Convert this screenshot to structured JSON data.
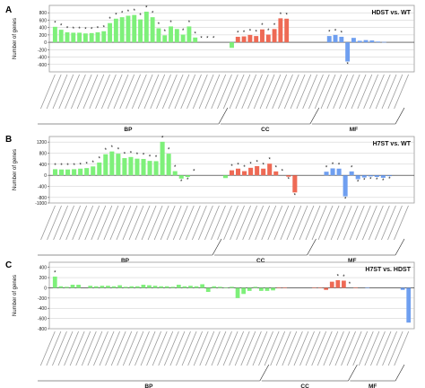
{
  "figure": {
    "bracket_labels": {
      "bp": "BP",
      "cc": "CC",
      "mf": "MF"
    },
    "y_axis_label": "Number of genes",
    "colors": {
      "bp": "#7ef07a",
      "cc": "#ee6a55",
      "mf": "#6f9ff0",
      "axis": "#222222",
      "grid": "#bdbdbd",
      "star": "#000000"
    }
  },
  "chart_data": [
    {
      "type": "bar",
      "panel": "A",
      "title": "HDST vs. WT",
      "ylabel": "Number of genes",
      "ylim": [
        -800,
        1000
      ],
      "yticks": [
        800,
        600,
        400,
        200,
        0,
        -200,
        -400,
        -600
      ],
      "grid": true,
      "bar_direction": "up_and_down",
      "groups": [
        {
          "name": "BP",
          "count": 30
        },
        {
          "name": "CC",
          "count": 15
        },
        {
          "name": "MF",
          "count": 14
        }
      ],
      "values": [
        420,
        340,
        270,
        260,
        260,
        240,
        250,
        270,
        300,
        520,
        640,
        680,
        720,
        740,
        620,
        830,
        680,
        380,
        190,
        430,
        360,
        210,
        430,
        130,
        0,
        0,
        0,
        0,
        0,
        -150,
        150,
        160,
        200,
        170,
        350,
        210,
        360,
        650,
        640,
        0,
        0,
        0,
        0,
        0,
        0,
        170,
        200,
        150,
        -520,
        120,
        40,
        60,
        50,
        20,
        10,
        0,
        0,
        0,
        0
      ],
      "significant": [
        0,
        1,
        2,
        3,
        4,
        5,
        6,
        7,
        8,
        9,
        10,
        11,
        12,
        13,
        14,
        15,
        16,
        17,
        18,
        19,
        21,
        22,
        23,
        24,
        25,
        26,
        30,
        31,
        32,
        33,
        34,
        35,
        36,
        37,
        38,
        45,
        46,
        47,
        48
      ]
    },
    {
      "type": "bar",
      "panel": "B",
      "title": "H7ST vs. WT",
      "ylabel": "Number of genes",
      "ylim": [
        -1000,
        1400
      ],
      "yticks": [
        1200,
        800,
        400,
        0,
        -400,
        -800,
        -1000
      ],
      "grid": true,
      "bar_direction": "up_and_down",
      "groups": [
        {
          "name": "BP",
          "count": 28
        },
        {
          "name": "CC",
          "count": 15
        },
        {
          "name": "MF",
          "count": 14
        }
      ],
      "values": [
        220,
        210,
        210,
        220,
        240,
        260,
        320,
        460,
        760,
        860,
        780,
        620,
        660,
        600,
        590,
        520,
        510,
        1210,
        780,
        150,
        -120,
        -60,
        0,
        0,
        0,
        0,
        0,
        -100,
        180,
        240,
        150,
        270,
        330,
        240,
        420,
        140,
        0,
        -50,
        -620,
        0,
        0,
        0,
        0,
        130,
        250,
        240,
        -760,
        140,
        -140,
        -80,
        -40,
        -60,
        -90,
        -30,
        0,
        0,
        0
      ],
      "significant": [
        0,
        1,
        2,
        3,
        4,
        5,
        6,
        7,
        8,
        9,
        10,
        11,
        12,
        13,
        14,
        15,
        16,
        17,
        18,
        19,
        20,
        21,
        22,
        28,
        29,
        30,
        31,
        32,
        33,
        34,
        35,
        36,
        37,
        38,
        43,
        44,
        45,
        46,
        47,
        48,
        49,
        50,
        51,
        52,
        53
      ]
    },
    {
      "type": "bar",
      "panel": "C",
      "title": "H7ST vs. HDST",
      "ylabel": "Number of genes",
      "ylim": [
        -800,
        500
      ],
      "yticks": [
        400,
        200,
        0,
        -200,
        -400,
        -600,
        -800
      ],
      "grid": true,
      "bar_direction": "up_and_down",
      "groups": [
        {
          "name": "BP",
          "count": 38
        },
        {
          "name": "CC",
          "count": 15
        },
        {
          "name": "MF",
          "count": 8
        }
      ],
      "values": [
        220,
        30,
        20,
        60,
        60,
        0,
        40,
        30,
        40,
        40,
        30,
        50,
        20,
        30,
        30,
        60,
        50,
        40,
        30,
        30,
        20,
        60,
        30,
        40,
        30,
        70,
        -80,
        30,
        20,
        10,
        20,
        -200,
        -120,
        -60,
        20,
        -60,
        -60,
        -50,
        10,
        10,
        0,
        0,
        0,
        0,
        10,
        10,
        -40,
        120,
        150,
        140,
        0,
        10,
        0,
        10,
        0,
        0,
        0,
        0,
        0,
        -40,
        -680
      ],
      "significant": [
        0,
        48,
        49,
        50
      ]
    }
  ]
}
